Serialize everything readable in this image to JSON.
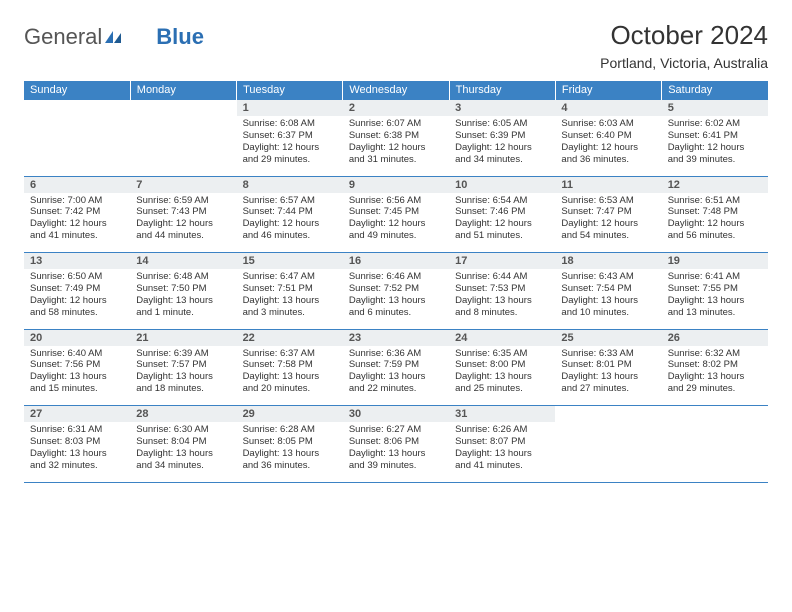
{
  "logo": {
    "part1": "General",
    "part2": "Blue"
  },
  "title": "October 2024",
  "subtitle": "Portland, Victoria, Australia",
  "colors": {
    "header_bg": "#3b82c4",
    "header_text": "#ffffff",
    "daynum_bg": "#eceff1",
    "border": "#3b82c4",
    "body_text": "#333333",
    "logo_gray": "#555555",
    "logo_blue": "#2b6fb3"
  },
  "day_headers": [
    "Sunday",
    "Monday",
    "Tuesday",
    "Wednesday",
    "Thursday",
    "Friday",
    "Saturday"
  ],
  "weeks": [
    [
      {},
      {},
      {
        "num": "1",
        "sunrise": "Sunrise: 6:08 AM",
        "sunset": "Sunset: 6:37 PM",
        "day1": "Daylight: 12 hours",
        "day2": "and 29 minutes."
      },
      {
        "num": "2",
        "sunrise": "Sunrise: 6:07 AM",
        "sunset": "Sunset: 6:38 PM",
        "day1": "Daylight: 12 hours",
        "day2": "and 31 minutes."
      },
      {
        "num": "3",
        "sunrise": "Sunrise: 6:05 AM",
        "sunset": "Sunset: 6:39 PM",
        "day1": "Daylight: 12 hours",
        "day2": "and 34 minutes."
      },
      {
        "num": "4",
        "sunrise": "Sunrise: 6:03 AM",
        "sunset": "Sunset: 6:40 PM",
        "day1": "Daylight: 12 hours",
        "day2": "and 36 minutes."
      },
      {
        "num": "5",
        "sunrise": "Sunrise: 6:02 AM",
        "sunset": "Sunset: 6:41 PM",
        "day1": "Daylight: 12 hours",
        "day2": "and 39 minutes."
      }
    ],
    [
      {
        "num": "6",
        "sunrise": "Sunrise: 7:00 AM",
        "sunset": "Sunset: 7:42 PM",
        "day1": "Daylight: 12 hours",
        "day2": "and 41 minutes."
      },
      {
        "num": "7",
        "sunrise": "Sunrise: 6:59 AM",
        "sunset": "Sunset: 7:43 PM",
        "day1": "Daylight: 12 hours",
        "day2": "and 44 minutes."
      },
      {
        "num": "8",
        "sunrise": "Sunrise: 6:57 AM",
        "sunset": "Sunset: 7:44 PM",
        "day1": "Daylight: 12 hours",
        "day2": "and 46 minutes."
      },
      {
        "num": "9",
        "sunrise": "Sunrise: 6:56 AM",
        "sunset": "Sunset: 7:45 PM",
        "day1": "Daylight: 12 hours",
        "day2": "and 49 minutes."
      },
      {
        "num": "10",
        "sunrise": "Sunrise: 6:54 AM",
        "sunset": "Sunset: 7:46 PM",
        "day1": "Daylight: 12 hours",
        "day2": "and 51 minutes."
      },
      {
        "num": "11",
        "sunrise": "Sunrise: 6:53 AM",
        "sunset": "Sunset: 7:47 PM",
        "day1": "Daylight: 12 hours",
        "day2": "and 54 minutes."
      },
      {
        "num": "12",
        "sunrise": "Sunrise: 6:51 AM",
        "sunset": "Sunset: 7:48 PM",
        "day1": "Daylight: 12 hours",
        "day2": "and 56 minutes."
      }
    ],
    [
      {
        "num": "13",
        "sunrise": "Sunrise: 6:50 AM",
        "sunset": "Sunset: 7:49 PM",
        "day1": "Daylight: 12 hours",
        "day2": "and 58 minutes."
      },
      {
        "num": "14",
        "sunrise": "Sunrise: 6:48 AM",
        "sunset": "Sunset: 7:50 PM",
        "day1": "Daylight: 13 hours",
        "day2": "and 1 minute."
      },
      {
        "num": "15",
        "sunrise": "Sunrise: 6:47 AM",
        "sunset": "Sunset: 7:51 PM",
        "day1": "Daylight: 13 hours",
        "day2": "and 3 minutes."
      },
      {
        "num": "16",
        "sunrise": "Sunrise: 6:46 AM",
        "sunset": "Sunset: 7:52 PM",
        "day1": "Daylight: 13 hours",
        "day2": "and 6 minutes."
      },
      {
        "num": "17",
        "sunrise": "Sunrise: 6:44 AM",
        "sunset": "Sunset: 7:53 PM",
        "day1": "Daylight: 13 hours",
        "day2": "and 8 minutes."
      },
      {
        "num": "18",
        "sunrise": "Sunrise: 6:43 AM",
        "sunset": "Sunset: 7:54 PM",
        "day1": "Daylight: 13 hours",
        "day2": "and 10 minutes."
      },
      {
        "num": "19",
        "sunrise": "Sunrise: 6:41 AM",
        "sunset": "Sunset: 7:55 PM",
        "day1": "Daylight: 13 hours",
        "day2": "and 13 minutes."
      }
    ],
    [
      {
        "num": "20",
        "sunrise": "Sunrise: 6:40 AM",
        "sunset": "Sunset: 7:56 PM",
        "day1": "Daylight: 13 hours",
        "day2": "and 15 minutes."
      },
      {
        "num": "21",
        "sunrise": "Sunrise: 6:39 AM",
        "sunset": "Sunset: 7:57 PM",
        "day1": "Daylight: 13 hours",
        "day2": "and 18 minutes."
      },
      {
        "num": "22",
        "sunrise": "Sunrise: 6:37 AM",
        "sunset": "Sunset: 7:58 PM",
        "day1": "Daylight: 13 hours",
        "day2": "and 20 minutes."
      },
      {
        "num": "23",
        "sunrise": "Sunrise: 6:36 AM",
        "sunset": "Sunset: 7:59 PM",
        "day1": "Daylight: 13 hours",
        "day2": "and 22 minutes."
      },
      {
        "num": "24",
        "sunrise": "Sunrise: 6:35 AM",
        "sunset": "Sunset: 8:00 PM",
        "day1": "Daylight: 13 hours",
        "day2": "and 25 minutes."
      },
      {
        "num": "25",
        "sunrise": "Sunrise: 6:33 AM",
        "sunset": "Sunset: 8:01 PM",
        "day1": "Daylight: 13 hours",
        "day2": "and 27 minutes."
      },
      {
        "num": "26",
        "sunrise": "Sunrise: 6:32 AM",
        "sunset": "Sunset: 8:02 PM",
        "day1": "Daylight: 13 hours",
        "day2": "and 29 minutes."
      }
    ],
    [
      {
        "num": "27",
        "sunrise": "Sunrise: 6:31 AM",
        "sunset": "Sunset: 8:03 PM",
        "day1": "Daylight: 13 hours",
        "day2": "and 32 minutes."
      },
      {
        "num": "28",
        "sunrise": "Sunrise: 6:30 AM",
        "sunset": "Sunset: 8:04 PM",
        "day1": "Daylight: 13 hours",
        "day2": "and 34 minutes."
      },
      {
        "num": "29",
        "sunrise": "Sunrise: 6:28 AM",
        "sunset": "Sunset: 8:05 PM",
        "day1": "Daylight: 13 hours",
        "day2": "and 36 minutes."
      },
      {
        "num": "30",
        "sunrise": "Sunrise: 6:27 AM",
        "sunset": "Sunset: 8:06 PM",
        "day1": "Daylight: 13 hours",
        "day2": "and 39 minutes."
      },
      {
        "num": "31",
        "sunrise": "Sunrise: 6:26 AM",
        "sunset": "Sunset: 8:07 PM",
        "day1": "Daylight: 13 hours",
        "day2": "and 41 minutes."
      },
      {},
      {}
    ]
  ]
}
